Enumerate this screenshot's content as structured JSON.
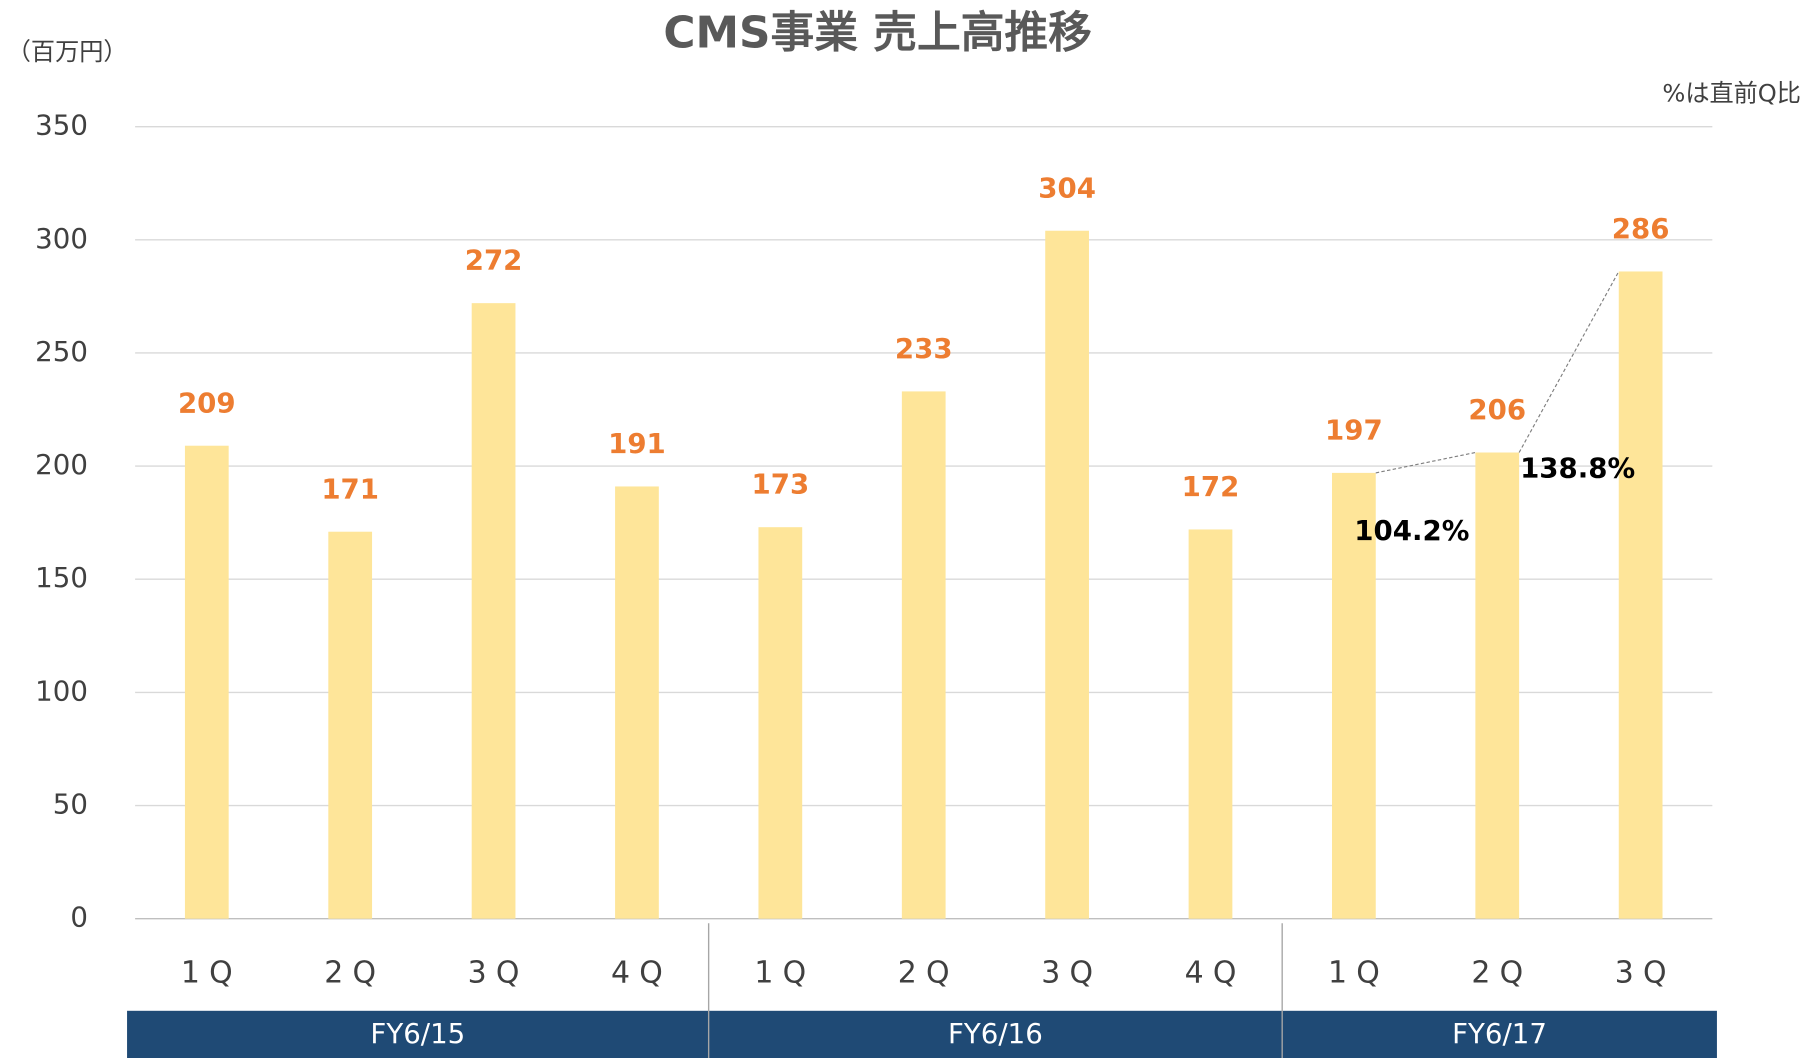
{
  "chart_data": {
    "type": "bar",
    "title": "CMS事業 売上高推移",
    "y_unit": "（百万円）",
    "note": "%は直前Q比",
    "groups": [
      {
        "label": "FY6/15",
        "categories": [
          "1Q",
          "2Q",
          "3Q",
          "4Q"
        ]
      },
      {
        "label": "FY6/16",
        "categories": [
          "1Q",
          "2Q",
          "3Q",
          "4Q"
        ]
      },
      {
        "label": "FY6/17",
        "categories": [
          "1Q",
          "2Q",
          "3Q"
        ]
      }
    ],
    "values": [
      209,
      171,
      272,
      191,
      173,
      233,
      304,
      172,
      197,
      206,
      286
    ],
    "color": "#fee599",
    "label_color": "#ed7d31",
    "group_color": "#1f4a75",
    "ylim": [
      0,
      350
    ],
    "yticks": [
      0,
      50,
      100,
      150,
      200,
      250,
      300,
      350
    ],
    "grid": true,
    "annotations": [
      {
        "value": 104.2,
        "label": "104.2%"
      },
      {
        "value": 138.8,
        "label": "138.8%"
      }
    ]
  }
}
